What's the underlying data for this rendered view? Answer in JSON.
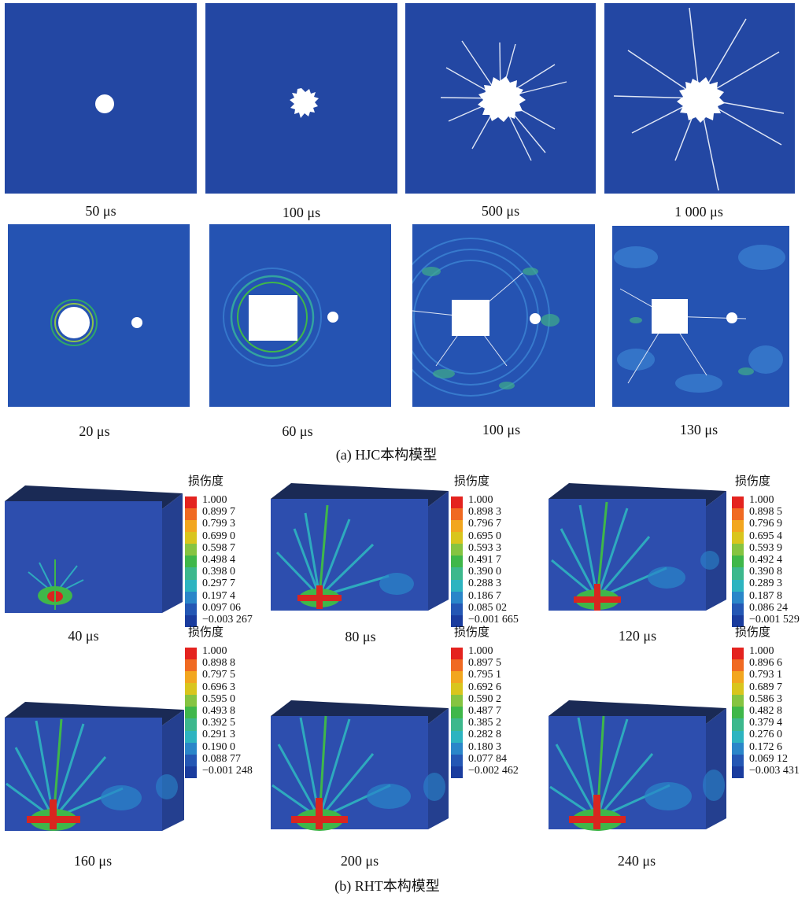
{
  "hjc": {
    "row1": [
      "50 μs",
      "100 μs",
      "500 μs",
      "1 000 μs"
    ],
    "row2": [
      "20 μs",
      "60 μs",
      "100 μs",
      "130 μs"
    ],
    "caption": "(a) HJC本构模型"
  },
  "rht": {
    "row1": [
      "40 μs",
      "80 μs",
      "120 μs"
    ],
    "row2": [
      "160 μs",
      "200 μs",
      "240 μs"
    ],
    "caption": "(b) RHT本构模型",
    "legend_title": "损伤度",
    "legend_colors": [
      "#e4231f",
      "#f06a22",
      "#f2a61f",
      "#d9c51d",
      "#86c441",
      "#3fb74a",
      "#3cb88d",
      "#2db4c0",
      "#2a86c9",
      "#2457b4",
      "#1a3c9e"
    ],
    "legends": [
      [
        "1.000",
        "0.899 7",
        "0.799 3",
        "0.699 0",
        "0.598 7",
        "0.498 4",
        "0.398 0",
        "0.297 7",
        "0.197 4",
        "0.097 06",
        "−0.003 267"
      ],
      [
        "1.000",
        "0.898 3",
        "0.796 7",
        "0.695 0",
        "0.593 3",
        "0.491 7",
        "0.390 0",
        "0.288 3",
        "0.186 7",
        "0.085 02",
        "−0.001 665"
      ],
      [
        "1.000",
        "0.898 5",
        "0.796 9",
        "0.695 4",
        "0.593 9",
        "0.492 4",
        "0.390 8",
        "0.289 3",
        "0.187 8",
        "0.086 24",
        "−0.001 529"
      ],
      [
        "1.000",
        "0.898 8",
        "0.797 5",
        "0.696 3",
        "0.595 0",
        "0.493 8",
        "0.392 5",
        "0.291 3",
        "0.190 0",
        "0.088 77",
        "−0.001 248"
      ],
      [
        "1.000",
        "0.897 5",
        "0.795 1",
        "0.692 6",
        "0.590 2",
        "0.487 7",
        "0.385 2",
        "0.282 8",
        "0.180 3",
        "0.077 84",
        "−0.002 462"
      ],
      [
        "1.000",
        "0.896 6",
        "0.793 1",
        "0.689 7",
        "0.586 3",
        "0.482 8",
        "0.379 4",
        "0.276 0",
        "0.172 6",
        "0.069 12",
        "−0.003 431"
      ]
    ]
  },
  "colors": {
    "concrete_blue": "#2347a3",
    "damage_light": "#3a7fd0",
    "damage_red": "#d8261f"
  }
}
